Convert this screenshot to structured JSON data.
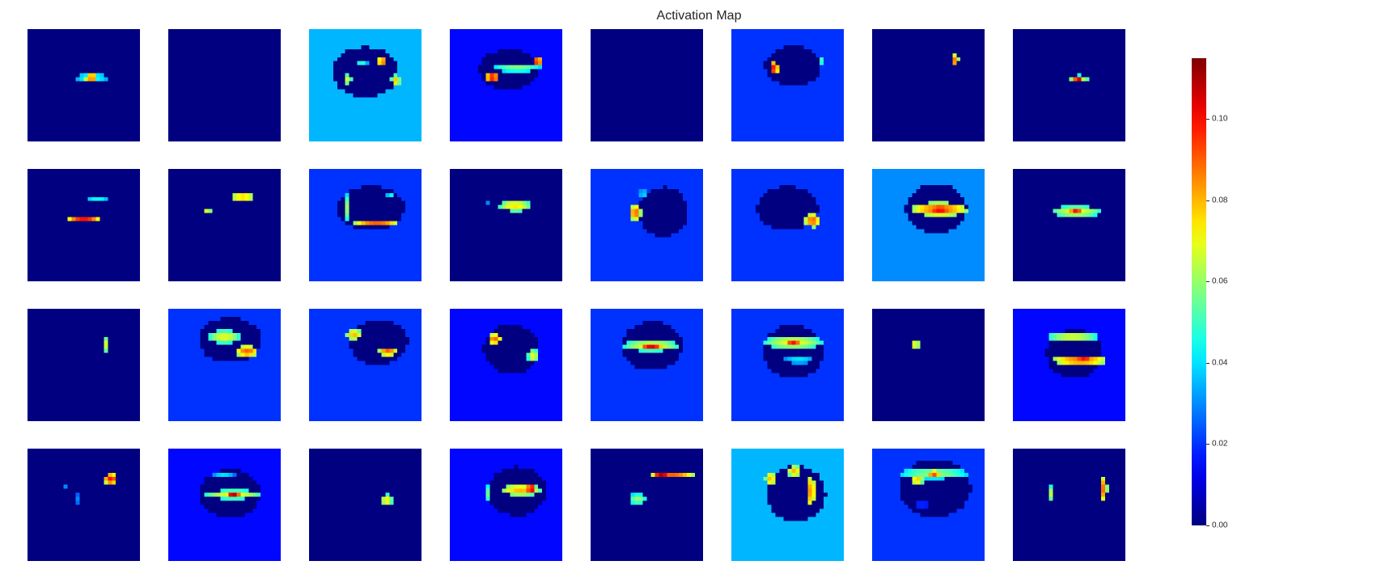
{
  "chart_data": {
    "type": "heatmap",
    "title": "Activation Map",
    "rows": 4,
    "cols": 8,
    "colormap": "jet",
    "value_range": [
      0.0,
      0.115
    ],
    "colorbar": {
      "ticks": [
        0.0,
        0.02,
        0.04,
        0.06,
        0.08,
        0.1
      ],
      "tick_labels": [
        "0.00",
        "0.02",
        "0.04",
        "0.06",
        "0.08",
        "0.10"
      ]
    },
    "maps": [
      {
        "bg": 0.0,
        "spots": [
          {
            "cx": 0.57,
            "cy": 0.43,
            "rx": 0.16,
            "ry": 0.03,
            "v": 0.05
          },
          {
            "cx": 0.57,
            "cy": 0.43,
            "rx": 0.07,
            "ry": 0.025,
            "v": 0.1
          }
        ]
      },
      {
        "bg": 0.0,
        "spots": []
      },
      {
        "bg": 0.035,
        "dark": {
          "cx": 0.5,
          "cy": 0.38,
          "rx": 0.3,
          "ry": 0.22,
          "v": 0.0
        },
        "spots": [
          {
            "cx": 0.47,
            "cy": 0.31,
            "rx": 0.05,
            "ry": 0.03,
            "v": 0.05
          },
          {
            "cx": 0.65,
            "cy": 0.29,
            "rx": 0.04,
            "ry": 0.05,
            "v": 0.09
          },
          {
            "cx": 0.35,
            "cy": 0.45,
            "rx": 0.03,
            "ry": 0.05,
            "v": 0.07
          },
          {
            "cx": 0.77,
            "cy": 0.46,
            "rx": 0.04,
            "ry": 0.05,
            "v": 0.08
          }
        ]
      },
      {
        "bg": 0.015,
        "dark": {
          "cx": 0.52,
          "cy": 0.36,
          "rx": 0.26,
          "ry": 0.18,
          "v": 0.0
        },
        "spots": [
          {
            "cx": 0.6,
            "cy": 0.35,
            "rx": 0.22,
            "ry": 0.03,
            "v": 0.06
          },
          {
            "cx": 0.78,
            "cy": 0.29,
            "rx": 0.04,
            "ry": 0.05,
            "v": 0.1
          },
          {
            "cx": 0.38,
            "cy": 0.43,
            "rx": 0.06,
            "ry": 0.05,
            "v": 0.1
          }
        ]
      },
      {
        "bg": 0.0,
        "spots": []
      },
      {
        "bg": 0.02,
        "dark": {
          "cx": 0.55,
          "cy": 0.33,
          "rx": 0.25,
          "ry": 0.18,
          "v": 0.0
        },
        "spots": [
          {
            "cx": 0.38,
            "cy": 0.35,
            "rx": 0.04,
            "ry": 0.06,
            "v": 0.1
          },
          {
            "cx": 0.79,
            "cy": 0.28,
            "rx": 0.02,
            "ry": 0.06,
            "v": 0.06
          }
        ]
      },
      {
        "bg": 0.0,
        "spots": [
          {
            "cx": 0.74,
            "cy": 0.28,
            "rx": 0.03,
            "ry": 0.06,
            "v": 0.09
          }
        ]
      },
      {
        "bg": 0.0,
        "spots": [
          {
            "cx": 0.58,
            "cy": 0.44,
            "rx": 0.1,
            "ry": 0.03,
            "v": 0.07
          },
          {
            "cx": 0.58,
            "cy": 0.44,
            "rx": 0.04,
            "ry": 0.025,
            "v": 0.11
          }
        ]
      },
      {
        "bg": 0.0,
        "spots": [
          {
            "cx": 0.62,
            "cy": 0.27,
            "rx": 0.1,
            "ry": 0.025,
            "v": 0.045
          },
          {
            "cx": 0.5,
            "cy": 0.45,
            "rx": 0.14,
            "ry": 0.025,
            "v": 0.1
          }
        ]
      },
      {
        "bg": 0.0,
        "spots": [
          {
            "cx": 0.66,
            "cy": 0.25,
            "rx": 0.12,
            "ry": 0.03,
            "v": 0.085
          },
          {
            "cx": 0.35,
            "cy": 0.38,
            "rx": 0.04,
            "ry": 0.03,
            "v": 0.07
          }
        ]
      },
      {
        "bg": 0.02,
        "dark": {
          "cx": 0.55,
          "cy": 0.35,
          "rx": 0.3,
          "ry": 0.2,
          "v": 0.0
        },
        "spots": [
          {
            "cx": 0.34,
            "cy": 0.35,
            "rx": 0.02,
            "ry": 0.12,
            "v": 0.06
          },
          {
            "cx": 0.6,
            "cy": 0.48,
            "rx": 0.2,
            "ry": 0.025,
            "v": 0.09
          },
          {
            "cx": 0.72,
            "cy": 0.22,
            "rx": 0.03,
            "ry": 0.025,
            "v": 0.05
          }
        ]
      },
      {
        "bg": 0.0,
        "spots": [
          {
            "cx": 0.58,
            "cy": 0.33,
            "rx": 0.14,
            "ry": 0.05,
            "v": 0.075
          },
          {
            "cx": 0.34,
            "cy": 0.3,
            "rx": 0.02,
            "ry": 0.02,
            "v": 0.03
          }
        ]
      },
      {
        "bg": 0.02,
        "dark": {
          "cx": 0.65,
          "cy": 0.38,
          "rx": 0.22,
          "ry": 0.22,
          "v": 0.0
        },
        "spots": [
          {
            "cx": 0.4,
            "cy": 0.39,
            "rx": 0.05,
            "ry": 0.07,
            "v": 0.09
          },
          {
            "cx": 0.47,
            "cy": 0.22,
            "rx": 0.04,
            "ry": 0.04,
            "v": 0.04
          }
        ]
      },
      {
        "bg": 0.02,
        "dark": {
          "cx": 0.5,
          "cy": 0.35,
          "rx": 0.27,
          "ry": 0.2,
          "v": 0.0
        },
        "spots": [
          {
            "cx": 0.72,
            "cy": 0.46,
            "rx": 0.07,
            "ry": 0.06,
            "v": 0.09
          }
        ]
      },
      {
        "bg": 0.03,
        "dark": {
          "cx": 0.57,
          "cy": 0.35,
          "rx": 0.27,
          "ry": 0.22,
          "v": 0.0
        },
        "spots": [
          {
            "cx": 0.6,
            "cy": 0.36,
            "rx": 0.25,
            "ry": 0.06,
            "v": 0.09
          },
          {
            "cx": 0.6,
            "cy": 0.36,
            "rx": 0.12,
            "ry": 0.03,
            "v": 0.11
          }
        ]
      },
      {
        "bg": 0.0,
        "spots": [
          {
            "cx": 0.56,
            "cy": 0.38,
            "rx": 0.22,
            "ry": 0.05,
            "v": 0.07
          },
          {
            "cx": 0.56,
            "cy": 0.38,
            "rx": 0.06,
            "ry": 0.03,
            "v": 0.1
          }
        ]
      },
      {
        "bg": 0.0,
        "spots": [
          {
            "cx": 0.71,
            "cy": 0.32,
            "rx": 0.02,
            "ry": 0.08,
            "v": 0.08
          }
        ]
      },
      {
        "bg": 0.02,
        "dark": {
          "cx": 0.55,
          "cy": 0.28,
          "rx": 0.28,
          "ry": 0.2,
          "v": 0.0
        },
        "spots": [
          {
            "cx": 0.5,
            "cy": 0.25,
            "rx": 0.14,
            "ry": 0.06,
            "v": 0.07
          },
          {
            "cx": 0.7,
            "cy": 0.38,
            "rx": 0.1,
            "ry": 0.05,
            "v": 0.09
          }
        ]
      },
      {
        "bg": 0.02,
        "dark": {
          "cx": 0.62,
          "cy": 0.3,
          "rx": 0.26,
          "ry": 0.2,
          "v": 0.0
        },
        "spots": [
          {
            "cx": 0.4,
            "cy": 0.23,
            "rx": 0.07,
            "ry": 0.05,
            "v": 0.08
          },
          {
            "cx": 0.7,
            "cy": 0.38,
            "rx": 0.08,
            "ry": 0.04,
            "v": 0.09
          }
        ]
      },
      {
        "bg": 0.015,
        "dark": {
          "cx": 0.55,
          "cy": 0.36,
          "rx": 0.25,
          "ry": 0.22,
          "v": 0.0
        },
        "spots": [
          {
            "cx": 0.4,
            "cy": 0.27,
            "rx": 0.06,
            "ry": 0.05,
            "v": 0.09
          },
          {
            "cx": 0.74,
            "cy": 0.42,
            "rx": 0.05,
            "ry": 0.06,
            "v": 0.07
          }
        ]
      },
      {
        "bg": 0.02,
        "dark": {
          "cx": 0.55,
          "cy": 0.33,
          "rx": 0.27,
          "ry": 0.22,
          "v": 0.0
        },
        "spots": [
          {
            "cx": 0.54,
            "cy": 0.33,
            "rx": 0.25,
            "ry": 0.05,
            "v": 0.07
          },
          {
            "cx": 0.54,
            "cy": 0.33,
            "rx": 0.1,
            "ry": 0.025,
            "v": 0.11
          }
        ]
      },
      {
        "bg": 0.02,
        "dark": {
          "cx": 0.55,
          "cy": 0.38,
          "rx": 0.27,
          "ry": 0.24,
          "v": 0.0
        },
        "spots": [
          {
            "cx": 0.55,
            "cy": 0.3,
            "rx": 0.26,
            "ry": 0.06,
            "v": 0.07
          },
          {
            "cx": 0.55,
            "cy": 0.3,
            "rx": 0.07,
            "ry": 0.03,
            "v": 0.1
          },
          {
            "cx": 0.6,
            "cy": 0.46,
            "rx": 0.15,
            "ry": 0.025,
            "v": 0.045
          }
        ]
      },
      {
        "bg": 0.0,
        "spots": [
          {
            "cx": 0.39,
            "cy": 0.32,
            "rx": 0.03,
            "ry": 0.04,
            "v": 0.08
          }
        ]
      },
      {
        "bg": 0.015,
        "dark": {
          "cx": 0.55,
          "cy": 0.4,
          "rx": 0.25,
          "ry": 0.22,
          "v": 0.0
        },
        "spots": [
          {
            "cx": 0.53,
            "cy": 0.25,
            "rx": 0.23,
            "ry": 0.04,
            "v": 0.07
          },
          {
            "cx": 0.6,
            "cy": 0.46,
            "rx": 0.25,
            "ry": 0.04,
            "v": 0.09
          },
          {
            "cx": 0.63,
            "cy": 0.46,
            "rx": 0.1,
            "ry": 0.025,
            "v": 0.11
          }
        ]
      },
      {
        "bg": 0.0,
        "spots": [
          {
            "cx": 0.74,
            "cy": 0.27,
            "rx": 0.06,
            "ry": 0.05,
            "v": 0.1
          },
          {
            "cx": 0.34,
            "cy": 0.34,
            "rx": 0.03,
            "ry": 0.03,
            "v": 0.03
          },
          {
            "cx": 0.45,
            "cy": 0.45,
            "rx": 0.03,
            "ry": 0.06,
            "v": 0.03
          }
        ]
      },
      {
        "bg": 0.015,
        "dark": {
          "cx": 0.55,
          "cy": 0.4,
          "rx": 0.27,
          "ry": 0.22,
          "v": 0.0
        },
        "spots": [
          {
            "cx": 0.58,
            "cy": 0.41,
            "rx": 0.25,
            "ry": 0.04,
            "v": 0.07
          },
          {
            "cx": 0.58,
            "cy": 0.41,
            "rx": 0.06,
            "ry": 0.025,
            "v": 0.11
          },
          {
            "cx": 0.49,
            "cy": 0.23,
            "rx": 0.1,
            "ry": 0.025,
            "v": 0.04
          }
        ]
      },
      {
        "bg": 0.0,
        "spots": [
          {
            "cx": 0.69,
            "cy": 0.46,
            "rx": 0.05,
            "ry": 0.05,
            "v": 0.075
          }
        ]
      },
      {
        "bg": 0.015,
        "dark": {
          "cx": 0.6,
          "cy": 0.38,
          "rx": 0.26,
          "ry": 0.22,
          "v": 0.0
        },
        "spots": [
          {
            "cx": 0.63,
            "cy": 0.37,
            "rx": 0.18,
            "ry": 0.05,
            "v": 0.08
          },
          {
            "cx": 0.72,
            "cy": 0.36,
            "rx": 0.04,
            "ry": 0.04,
            "v": 0.11
          },
          {
            "cx": 0.33,
            "cy": 0.4,
            "rx": 0.02,
            "ry": 0.08,
            "v": 0.06
          }
        ]
      },
      {
        "bg": 0.0,
        "spots": [
          {
            "cx": 0.72,
            "cy": 0.23,
            "rx": 0.2,
            "ry": 0.03,
            "v": 0.09
          },
          {
            "cx": 0.63,
            "cy": 0.23,
            "rx": 0.07,
            "ry": 0.025,
            "v": 0.11
          },
          {
            "cx": 0.42,
            "cy": 0.45,
            "rx": 0.08,
            "ry": 0.05,
            "v": 0.06
          }
        ]
      },
      {
        "bg": 0.035,
        "dark": {
          "cx": 0.58,
          "cy": 0.4,
          "rx": 0.26,
          "ry": 0.25,
          "v": 0.0
        },
        "spots": [
          {
            "cx": 0.35,
            "cy": 0.27,
            "rx": 0.05,
            "ry": 0.06,
            "v": 0.08
          },
          {
            "cx": 0.56,
            "cy": 0.2,
            "rx": 0.06,
            "ry": 0.05,
            "v": 0.08
          },
          {
            "cx": 0.71,
            "cy": 0.38,
            "rx": 0.03,
            "ry": 0.15,
            "v": 0.09
          }
        ]
      },
      {
        "bg": 0.02,
        "dark": {
          "cx": 0.56,
          "cy": 0.35,
          "rx": 0.32,
          "ry": 0.26,
          "v": 0.0
        },
        "spots": [
          {
            "cx": 0.55,
            "cy": 0.22,
            "rx": 0.3,
            "ry": 0.05,
            "v": 0.06
          },
          {
            "cx": 0.55,
            "cy": 0.22,
            "rx": 0.06,
            "ry": 0.025,
            "v": 0.1
          },
          {
            "cx": 0.4,
            "cy": 0.28,
            "rx": 0.06,
            "ry": 0.04,
            "v": 0.08
          },
          {
            "cx": 0.44,
            "cy": 0.5,
            "rx": 0.12,
            "ry": 0.02,
            "v": 0.025
          }
        ]
      },
      {
        "bg": 0.0,
        "spots": [
          {
            "cx": 0.33,
            "cy": 0.4,
            "rx": 0.02,
            "ry": 0.07,
            "v": 0.07
          },
          {
            "cx": 0.81,
            "cy": 0.36,
            "rx": 0.03,
            "ry": 0.11,
            "v": 0.09
          }
        ]
      }
    ]
  }
}
